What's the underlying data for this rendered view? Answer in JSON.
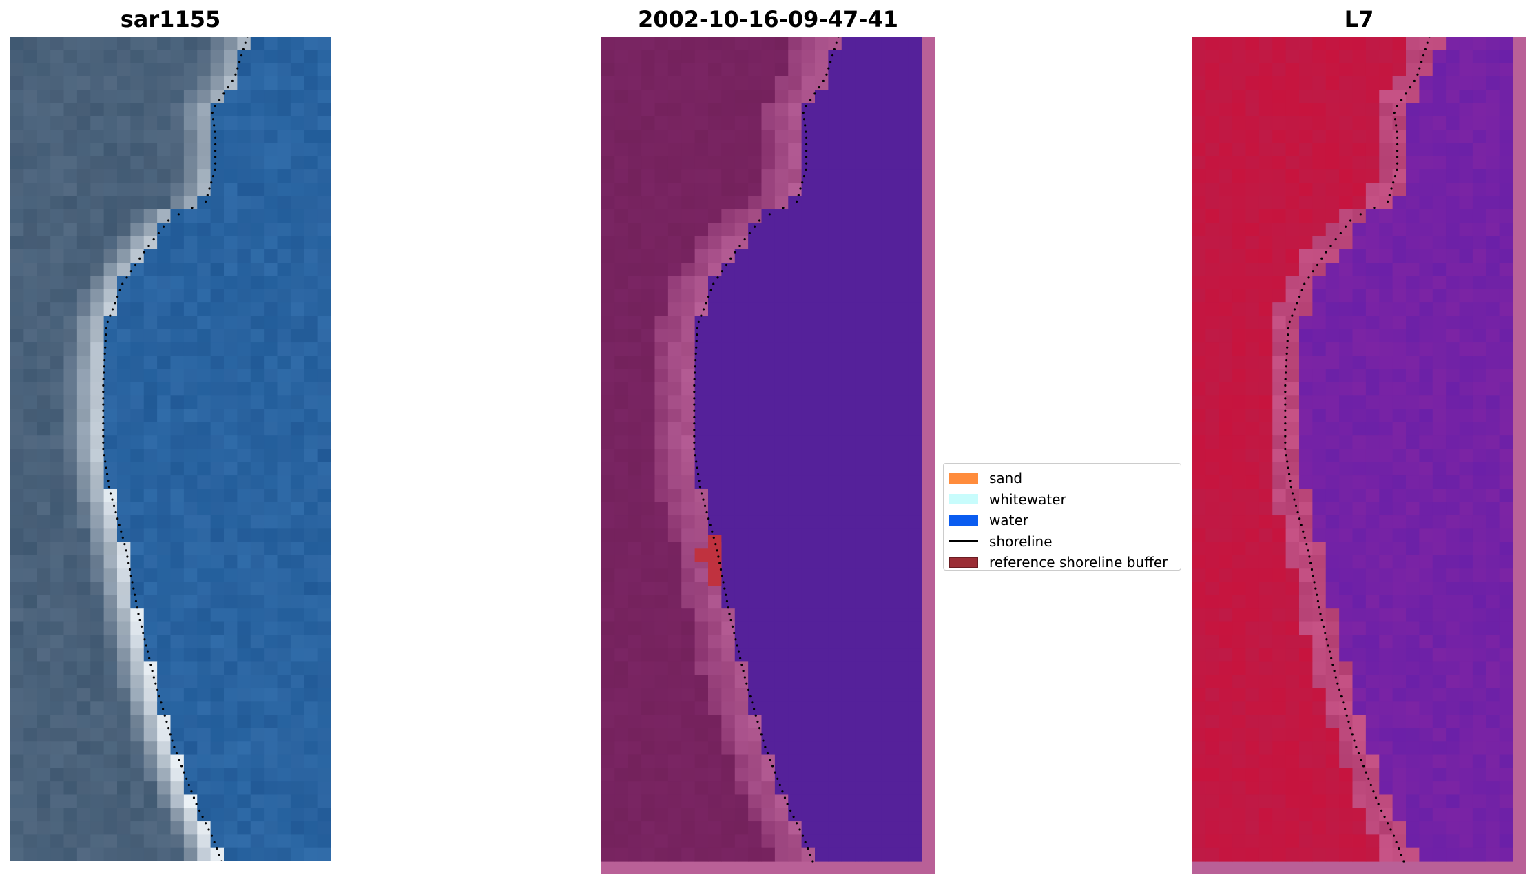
{
  "panels": [
    {
      "title": "sar1155",
      "kind": "rgb"
    },
    {
      "title": "2002-10-16-09-47-41",
      "kind": "classified"
    },
    {
      "title": "L7",
      "kind": "ndwi"
    }
  ],
  "legend": {
    "items": [
      {
        "label": "sand",
        "color": "#ff8c3c",
        "type": "patch"
      },
      {
        "label": "whitewater",
        "color": "#c8fcfc",
        "type": "patch"
      },
      {
        "label": "water",
        "color": "#0a5cf0",
        "type": "patch"
      },
      {
        "label": "shoreline",
        "color": "#000000",
        "type": "line"
      },
      {
        "label": "reference shoreline buffer",
        "color": "#9b2d35",
        "type": "patch"
      }
    ]
  },
  "colors": {
    "water_class": "#55219a",
    "land_class": "#7a2563",
    "buffer_pink": "#b96097",
    "ndwi_land": "#c7143e",
    "ndwi_water": "#7c24a4",
    "rgb_water": "#2a66a3",
    "rgb_sand": "#e8eef3",
    "shoreline": "#000000"
  }
}
